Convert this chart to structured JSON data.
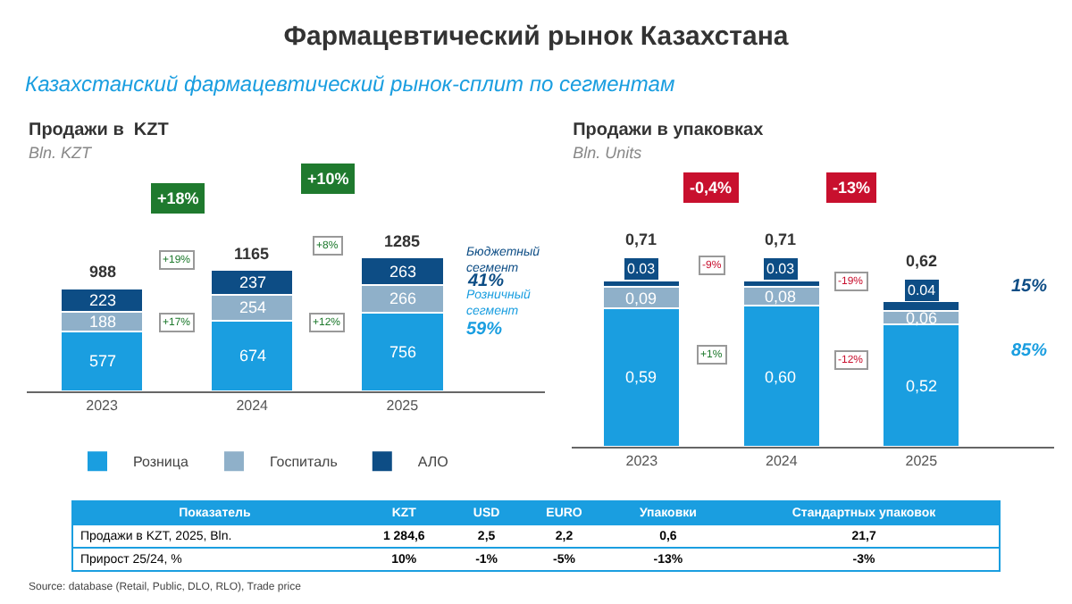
{
  "chart_data": [
    {
      "type": "other",
      "title": "Фармацевтический рынок Казахстана",
      "subtitle": "Казахстанский фармацевтический рынок-сплит по сегментам"
    },
    {
      "type": "bar",
      "title": "Продажи в  KZT",
      "subtitle": "Bln. KZT",
      "categories": [
        "2023",
        "2024",
        "2025"
      ],
      "stacked": true,
      "data_labels": true,
      "legend": "bottom",
      "tick_labels": "x",
      "series": [
        {
          "name": "Розница",
          "color": "#1a9ee0",
          "values": [
            577,
            674,
            756
          ]
        },
        {
          "name": "Госпиталь",
          "color": "#8fb0c9",
          "values": [
            188,
            254,
            266
          ]
        },
        {
          "name": "АЛО",
          "color": "#0d4d85",
          "values": [
            223,
            237,
            263
          ]
        }
      ],
      "totals": [
        "988",
        "1165",
        "1285"
      ],
      "annotations": [
        "+18%",
        "+10%",
        "+19%",
        "+8%",
        "+17%",
        "+12%",
        "Бюджетный сегмент",
        "41%",
        "Розничный сегмент",
        "59%"
      ]
    },
    {
      "type": "bar",
      "title": "Продажи в упаковках",
      "subtitle": "Bln. Units",
      "categories": [
        "2023",
        "2024",
        "2025"
      ],
      "stacked": true,
      "tick_labels": "x",
      "series": [
        {
          "color": "#1a9ee0",
          "values": [
            0.59,
            0.6,
            0.52
          ],
          "value_labels": [
            "0,59",
            "0,60",
            "0,52"
          ]
        },
        {
          "color": "#8fb0c9",
          "values": [
            0.09,
            0.08,
            0.06
          ],
          "value_labels": [
            "0,09",
            "0,08",
            "0,06"
          ]
        },
        {
          "color": "#0d4d85",
          "values": [
            0.03,
            0.03,
            0.04
          ],
          "value_labels": [
            "0.03",
            "0.03",
            "0.04"
          ]
        }
      ],
      "totals": [
        "0,71",
        "0,71",
        "0,62"
      ],
      "annotations": [
        "-0,4%",
        "-13%",
        "-9%",
        "-19%",
        "+1%",
        "-12%",
        "15%",
        "85%"
      ]
    },
    {
      "type": "other",
      "annotations": [
        "Показатель",
        "KZT",
        "USD",
        "EURO",
        "Упаковки",
        "Стандартных упаковок",
        "Продажи в  KZT, 2025, Bln.",
        "1 284,6",
        "2,5",
        "2,2",
        "0,6",
        "21,7",
        "Прирост 25/24, %",
        "10%",
        "-1%",
        "-5%",
        "-13%",
        "-3%",
        "Source: database (Retail, Public, DLO, RLO), Trade price"
      ]
    }
  ]
}
